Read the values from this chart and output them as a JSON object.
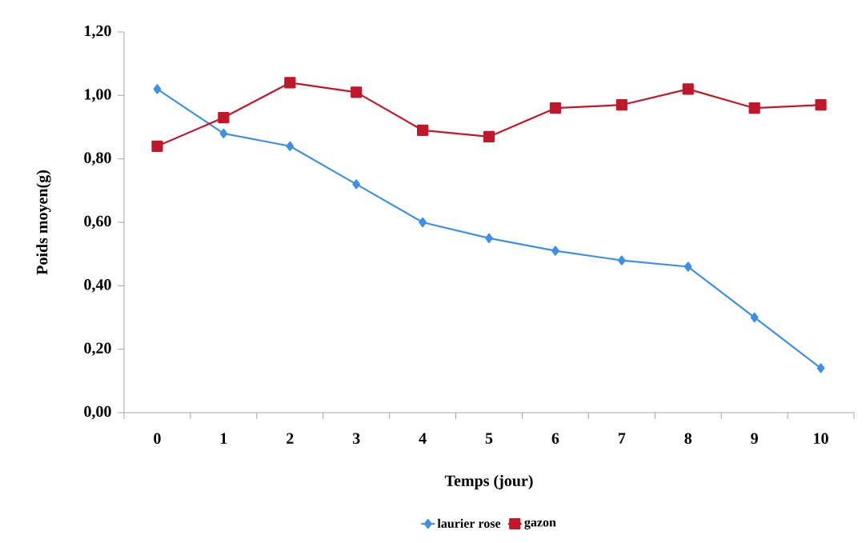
{
  "chart_data": {
    "type": "line",
    "xlabel": "Temps (jour)",
    "ylabel": "Poids moyen(g)",
    "categories": [
      "0",
      "1",
      "2",
      "3",
      "4",
      "5",
      "6",
      "7",
      "8",
      "9",
      "10"
    ],
    "series": [
      {
        "name": "laurier rose",
        "color": "#3f8fe6",
        "marker": "diamond",
        "values": [
          1.02,
          0.88,
          0.84,
          0.72,
          0.6,
          0.55,
          0.51,
          0.48,
          0.46,
          0.3,
          0.14
        ]
      },
      {
        "name": "gazon",
        "color": "#c0182b",
        "marker": "square",
        "values": [
          0.84,
          0.93,
          1.04,
          1.01,
          0.89,
          0.87,
          0.96,
          0.97,
          1.02,
          0.96,
          0.97
        ]
      }
    ],
    "ylim": [
      0,
      1.2
    ],
    "yticks": [
      {
        "value": 0,
        "label": "0,00"
      },
      {
        "value": 0.2,
        "label": "0,20"
      },
      {
        "value": 0.4,
        "label": "0,40"
      },
      {
        "value": 0.6,
        "label": "0,60"
      },
      {
        "value": 0.8,
        "label": "0,80"
      },
      {
        "value": 1.0,
        "label": "1,00"
      },
      {
        "value": 1.2,
        "label": "1,20"
      }
    ],
    "grid": false,
    "legend": "bottom",
    "line_style": "solid"
  }
}
